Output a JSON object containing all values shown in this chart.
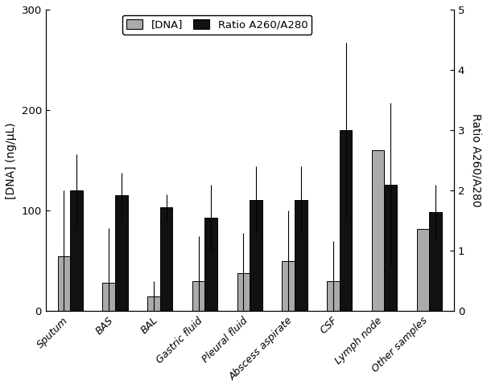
{
  "categories": [
    "Sputum",
    "BAS",
    "BAL",
    "Gastric fluid",
    "Pleural fluid",
    "Abscess aspirate",
    "CSF",
    "Lymph node",
    "Other samples"
  ],
  "dna_values": [
    55,
    28,
    15,
    30,
    38,
    50,
    30,
    160,
    82
  ],
  "dna_errors": [
    65,
    55,
    15,
    45,
    40,
    50,
    40,
    0,
    0
  ],
  "ratio_values": [
    2.0,
    1.92,
    1.72,
    1.55,
    1.85,
    1.85,
    3.0,
    2.1,
    1.65
  ],
  "ratio_errors": [
    0.6,
    0.38,
    0.22,
    0.55,
    0.55,
    0.55,
    1.45,
    1.35,
    0.45
  ],
  "dna_color": "#aaaaaa",
  "ratio_color": "#111111",
  "ylim_left": [
    0,
    300
  ],
  "ylim_right": [
    0,
    5
  ],
  "ylabel_left": "[DNA] (ng/μL)",
  "ylabel_right": "Ratio A260/A280",
  "legend_labels": [
    "[DNA]",
    "Ratio A260/A280"
  ],
  "bar_width": 0.28,
  "figsize": [
    6.05,
    4.83
  ],
  "dpi": 100
}
